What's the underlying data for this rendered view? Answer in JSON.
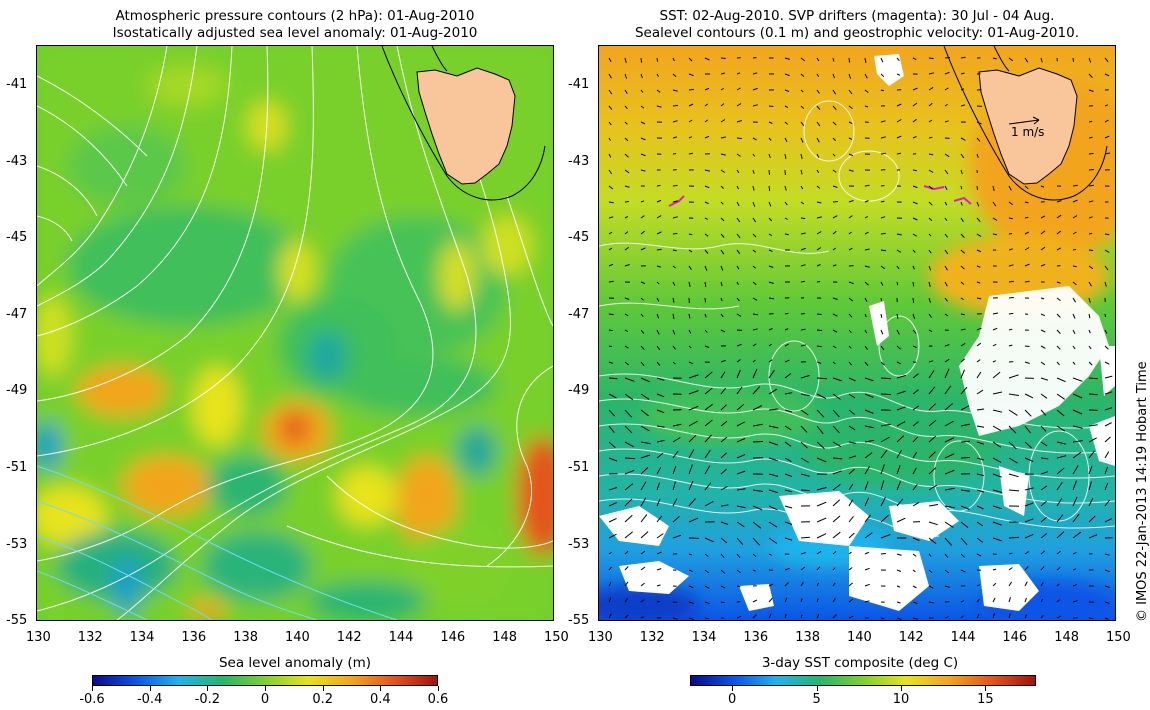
{
  "left_map": {
    "title_line1": "Atmospheric pressure contours (2 hPa): 01-Aug-2010",
    "title_line2": "Isostatically adjusted sea level anomaly: 01-Aug-2010",
    "colorbar_title": "Sea level anomaly (m)",
    "colorbar_ticks": [
      "-0.6",
      "-0.4",
      "-0.2",
      "0",
      "0.2",
      "0.4",
      "0.6"
    ],
    "colorbar_colors": [
      "#0a0a8c",
      "#0b55e6",
      "#1fb4ec",
      "#22b86a",
      "#7fd12a",
      "#e7e31d",
      "#f2a51e",
      "#e4541a",
      "#a3120e"
    ]
  },
  "right_map": {
    "title_line1": "SST: 02-Aug-2010. SVP drifters (magenta): 30 Jul - 04 Aug.",
    "title_line2": "Sealevel contours (0.1 m) and geostrophic velocity: 01-Aug-2010.",
    "colorbar_title": "3-day SST composite (deg C)",
    "colorbar_ticks": [
      "0",
      "5",
      "10",
      "15"
    ],
    "colorbar_colors": [
      "#0a0a8c",
      "#0b55e6",
      "#1fb4ec",
      "#22b86a",
      "#7fd12a",
      "#e7e31d",
      "#f2a51e",
      "#e4541a",
      "#a3120e"
    ],
    "velocity_scale_label": "1 m/s"
  },
  "axes": {
    "lon_ticks": [
      "130",
      "132",
      "134",
      "136",
      "138",
      "140",
      "142",
      "144",
      "146",
      "148",
      "150"
    ],
    "lat_ticks": [
      "-41",
      "-43",
      "-45",
      "-47",
      "-49",
      "-51",
      "-53",
      "-55"
    ]
  },
  "copyright": "© IMOS 22-Jan-2013 14:19 Hobart Time",
  "land_color": "#f9c59b"
}
